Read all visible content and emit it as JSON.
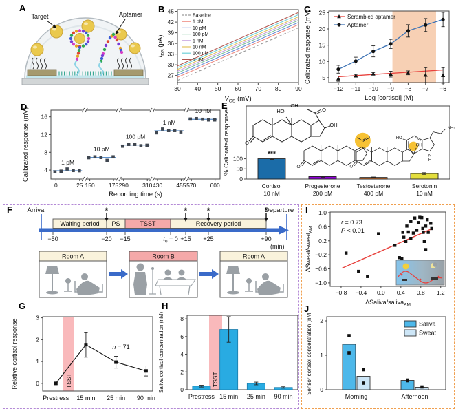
{
  "panels": {
    "a": "A",
    "b": "B",
    "c": "C",
    "d": "D",
    "e": "E",
    "f": "F",
    "g": "G",
    "h": "H",
    "i": "I",
    "j": "J"
  },
  "colors": {
    "timeline_blue": "#3a6bc9",
    "cream": "#faf3dc",
    "pink": "#f5a9a9",
    "band_pink": "#f9b9bb",
    "bar_blue": "#29abe2",
    "sweat_blue": "#cde6f7",
    "shade_orange": "#f4c09b",
    "fit_red": "#e8413c",
    "purple_border": "#b48ad6",
    "orange_border": "#f0a050",
    "marker_dark": "#2e3338"
  },
  "panel_a": {
    "target_label": "Target",
    "aptamer_label": "Aptamer"
  },
  "panel_f": {
    "arrival": "Arrival",
    "departure": "Departure",
    "unit": "(min)",
    "segments": [
      {
        "name": "Waiting period",
        "start": -50,
        "end": -20,
        "pink": false
      },
      {
        "name": "PS",
        "start": -20,
        "end": -15,
        "pink": false
      },
      {
        "name": "TSST",
        "start": -15,
        "end": 0,
        "pink": true
      },
      {
        "name": "Recovery period",
        "start": 0,
        "end": 90,
        "pink": false
      }
    ],
    "ticks": [
      {
        "t": -50,
        "label": "−50"
      },
      {
        "t": -20,
        "label": "−20"
      },
      {
        "t": -15,
        "label": "−15"
      },
      {
        "t": 0,
        "rich": {
          "it": "t",
          "sub": "0",
          "post": " = 0"
        }
      },
      {
        "t": 15,
        "label": "+15"
      },
      {
        "t": 25,
        "label": "+25"
      },
      {
        "t": 90,
        "label": "+90"
      }
    ],
    "sample_times": [
      -20,
      15,
      25,
      90
    ],
    "rooms": [
      {
        "name": "Room A",
        "pink": false
      },
      {
        "name": "Room B",
        "pink": true
      },
      {
        "name": "Room A",
        "pink": false
      }
    ]
  },
  "chart_data": [
    {
      "panel": "b",
      "type": "line",
      "xlabel": {
        "it": "V",
        "sub": "GS",
        "post": " (mV)"
      },
      "ylabel": {
        "it": "I",
        "sub": "DS",
        "post": " (μA)"
      },
      "xlim": [
        30,
        90
      ],
      "ylim": [
        25,
        45.5
      ],
      "xticks": [
        30,
        40,
        50,
        60,
        70,
        80,
        90
      ],
      "yticks": [
        27,
        30,
        33,
        36,
        39,
        42,
        45
      ],
      "series": [
        {
          "name": "Baseline",
          "color": "#9a9a9a",
          "dash": true,
          "points": [
            [
              30,
              25.6
            ],
            [
              90,
              40.4
            ]
          ]
        },
        {
          "name": "1 pM",
          "color": "#ef8a80",
          "dash": false,
          "points": [
            [
              30,
              26.5
            ],
            [
              90,
              41.3
            ]
          ]
        },
        {
          "name": "10 pM",
          "color": "#6b8fd6",
          "dash": false,
          "points": [
            [
              30,
              27.1
            ],
            [
              90,
              41.9
            ]
          ]
        },
        {
          "name": "100 pM",
          "color": "#7cc29a",
          "dash": false,
          "points": [
            [
              30,
              27.7
            ],
            [
              90,
              42.5
            ]
          ]
        },
        {
          "name": "1 nM",
          "color": "#c7a3e0",
          "dash": false,
          "points": [
            [
              30,
              28.2
            ],
            [
              90,
              43.0
            ]
          ]
        },
        {
          "name": "10 nM",
          "color": "#e3c45c",
          "dash": false,
          "points": [
            [
              30,
              28.7
            ],
            [
              90,
              43.5
            ]
          ]
        },
        {
          "name": "100 nM",
          "color": "#6fd0d8",
          "dash": false,
          "points": [
            [
              30,
              29.2
            ],
            [
              90,
              44.1
            ]
          ]
        },
        {
          "name": "1 μM",
          "color": "#b2574f",
          "dash": false,
          "points": [
            [
              30,
              29.7
            ],
            [
              90,
              44.7
            ]
          ]
        }
      ]
    },
    {
      "panel": "c",
      "type": "line-error",
      "xlabel": "Log [cortisol] (M)",
      "ylabel": "Calibrated response (mV)",
      "xlim": [
        -12.55,
        -5.65
      ],
      "ylim": [
        3.5,
        25.5
      ],
      "xticks": [
        -12,
        -11,
        -10,
        -9,
        -8,
        -7,
        -6
      ],
      "xtick_labels": [
        "−12",
        "−11",
        "−10",
        "−9",
        "−8",
        "−7",
        "−6"
      ],
      "yticks": [
        5,
        10,
        15,
        20,
        25
      ],
      "shade_x": [
        -8.9,
        -6.4
      ],
      "series": [
        {
          "name": "Scrambled aptamer",
          "line_color": "#e8413c",
          "marker": "triangle",
          "x": [
            -12,
            -11,
            -10,
            -9,
            -8,
            -7,
            -6
          ],
          "y": [
            4.7,
            5.6,
            6.2,
            6.1,
            6.5,
            5.8,
            5.7
          ],
          "err": [
            0.8,
            0.4,
            0.4,
            0.9,
            0.6,
            2.3,
            2.4
          ],
          "fit": [
            [
              -12,
              5.3
            ],
            [
              -6,
              7.4
            ]
          ]
        },
        {
          "name": "Aptamer",
          "line_color": "#3f74b5",
          "marker": "circle",
          "x": [
            -12,
            -11,
            -10,
            -9,
            -8,
            -7,
            -6
          ],
          "y": [
            7.6,
            10.1,
            13.1,
            15.4,
            19.4,
            21.2,
            22.9
          ],
          "err": [
            1.2,
            1.2,
            1.7,
            1.4,
            1.9,
            2.0,
            2.2
          ],
          "fit": null
        }
      ]
    },
    {
      "panel": "d",
      "type": "steps",
      "xlabel": "Recording time (s)",
      "ylabel": "Calibrated response (mV)",
      "ylim": [
        2,
        17.5
      ],
      "yticks": [
        4,
        8,
        12,
        16
      ],
      "marker_color": "#3f4650",
      "line_color": "#5b8fc9",
      "segments": [
        {
          "label": "1 pM",
          "tick_labels": [
            "0",
            "25"
          ],
          "level": 3.85,
          "points": [
            3.6,
            3.75,
            4.25,
            3.9,
            3.85
          ]
        },
        {
          "label": "10 pM",
          "tick_labels": [
            "150",
            "175"
          ],
          "level": 6.85,
          "points": [
            6.8,
            7.0,
            6.85,
            6.2,
            7.0
          ]
        },
        {
          "label": "100 pM",
          "tick_labels": [
            "290",
            "310"
          ],
          "level": 9.65,
          "points": [
            9.4,
            9.8,
            9.8,
            9.5,
            9.6
          ]
        },
        {
          "label": "1 nM",
          "tick_labels": [
            "430",
            "455"
          ],
          "level": 12.85,
          "points": [
            12.4,
            13.25,
            12.9,
            12.9,
            12.6
          ]
        },
        {
          "label": "10 nM",
          "tick_labels": [
            "570",
            "600"
          ],
          "level": 15.45,
          "points": [
            15.5,
            15.6,
            15.45,
            15.3,
            15.3
          ]
        }
      ]
    },
    {
      "panel": "e",
      "type": "bar",
      "ylabel": "% Calibrated response",
      "ylim": [
        0,
        360
      ],
      "yticks": [
        0,
        50,
        100
      ],
      "categories": [
        {
          "name": "Cortisol",
          "conc": "10 nM"
        },
        {
          "name": "Progesterone",
          "conc": "200 pM"
        },
        {
          "name": "Testosterone",
          "conc": "400 pM"
        },
        {
          "name": "Serotonin",
          "conc": "10 nM"
        }
      ],
      "values": [
        100,
        12,
        8,
        27
      ],
      "errors": [
        3,
        3,
        2,
        4
      ],
      "bar_colors": [
        "#1b6ca8",
        "#9000d8",
        "#e87722",
        "#e3de3d"
      ],
      "significance": "***",
      "structures": [
        {
          "kind": "steroid",
          "variant": "cortisol",
          "atoms": [
            "OH",
            "O",
            "OH",
            "HO",
            "O"
          ]
        },
        {
          "kind": "steroid",
          "variant": "progesterone",
          "atoms": [
            "O",
            "O"
          ]
        },
        {
          "kind": "steroid",
          "variant": "testosterone",
          "atoms": [
            "OH",
            "O"
          ]
        },
        {
          "kind": "serotonin",
          "variant": "serotonin",
          "atoms": [
            "HO",
            "NH₂",
            "N",
            "H"
          ]
        }
      ]
    },
    {
      "panel": "g",
      "type": "line-cat",
      "ylabel": "Relative cortisol response",
      "categories": [
        "Prestress",
        "15 min",
        "25 min",
        "90 min"
      ],
      "values": [
        0,
        1.77,
        0.97,
        0.57
      ],
      "errors": [
        0.04,
        0.57,
        0.27,
        0.23
      ],
      "ylim": [
        -0.35,
        3.05
      ],
      "yticks": [
        0,
        1,
        2,
        3
      ],
      "annotation": {
        "it": "n",
        "post": " = 71"
      },
      "band_label": "TSST"
    },
    {
      "panel": "h",
      "type": "bar-cat",
      "ylabel": "Saliva cortisol concentration (nM)",
      "categories": [
        "Prestress",
        "15 min",
        "25 min",
        "90 min"
      ],
      "values": [
        0.4,
        6.8,
        0.7,
        0.25
      ],
      "errors": [
        0.1,
        1.45,
        0.15,
        0.08
      ],
      "ylim": [
        0,
        8.4
      ],
      "yticks": [
        0,
        2,
        4,
        6,
        8
      ],
      "band_label": "TSST"
    },
    {
      "panel": "i",
      "type": "scatter",
      "xlabel": {
        "pre": "ΔSaliva/saliva",
        "sub": "AM"
      },
      "ylabel": {
        "pre": "ΔSweat/sweat",
        "sub": "AM"
      },
      "xlim": [
        -1.02,
        1.3
      ],
      "ylim": [
        -1.1,
        1.02
      ],
      "xticks": [
        -0.8,
        -0.4,
        0.0,
        0.4,
        0.8,
        1.2
      ],
      "xtick_labels": [
        "−0.8",
        "−0.4",
        "0.0",
        "0.4",
        "0.8",
        "1.2"
      ],
      "yticks": [
        -1.0,
        -0.6,
        -0.2,
        0.2,
        0.6,
        1.0
      ],
      "ytick_labels": [
        "−1.0",
        "−0.6",
        "−0.2",
        "0.2",
        "0.6",
        "1.0"
      ],
      "stats": [
        {
          "it": "r",
          "post": " = 0.73"
        },
        {
          "it": "P",
          "post": " < 0.01"
        }
      ],
      "fit_line": [
        [
          -0.78,
          -0.58
        ],
        [
          1.05,
          0.56
        ]
      ],
      "points": [
        [
          -0.7,
          -0.15
        ],
        [
          -0.45,
          -0.67
        ],
        [
          -0.27,
          -0.82
        ],
        [
          -0.05,
          0.4
        ],
        [
          0.28,
          0.07
        ],
        [
          0.37,
          -0.28
        ],
        [
          0.42,
          -0.3
        ],
        [
          0.44,
          0.44
        ],
        [
          0.46,
          0.3
        ],
        [
          0.5,
          0.18
        ],
        [
          0.52,
          0.62
        ],
        [
          0.55,
          0.45
        ],
        [
          0.6,
          0.27
        ],
        [
          0.6,
          0.75
        ],
        [
          0.65,
          0.42
        ],
        [
          0.68,
          0.85
        ],
        [
          0.72,
          0.5
        ],
        [
          0.75,
          0.72
        ],
        [
          0.78,
          0.87
        ],
        [
          0.82,
          0.86
        ],
        [
          0.84,
          0.55
        ],
        [
          0.85,
          0.44
        ],
        [
          0.87,
          0.18
        ],
        [
          0.9,
          -0.05
        ],
        [
          0.9,
          0.62
        ],
        [
          0.93,
          0.8
        ],
        [
          0.95,
          0.44
        ],
        [
          1.0,
          0.7
        ],
        [
          1.02,
          0.55
        ]
      ]
    },
    {
      "panel": "j",
      "type": "grouped-bar",
      "ylabel": "Sensor cortisol concentration (nM)",
      "groups": [
        "Morning",
        "Afternoon"
      ],
      "ylim": [
        0,
        2.12
      ],
      "yticks": [
        0,
        1,
        2
      ],
      "series": [
        {
          "name": "Saliva",
          "color": "#4db8ea",
          "values": [
            1.32,
            0.27
          ],
          "points": [
            [
              1.57,
              1.07
            ],
            [
              0.28,
              0.26
            ]
          ]
        },
        {
          "name": "Sweat",
          "color": "#cde6f7",
          "values": [
            0.39,
            0.07
          ],
          "points": [
            [
              0.58,
              0.19
            ],
            [
              0.08
            ]
          ]
        }
      ]
    }
  ]
}
